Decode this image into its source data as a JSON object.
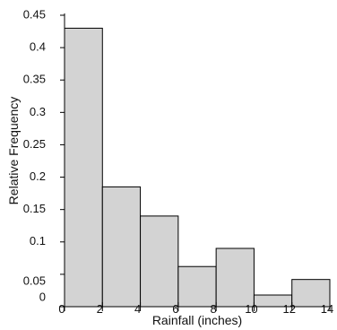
{
  "chart_data": {
    "type": "bar",
    "xlabel": "Rainfall (inches)",
    "ylabel": "Relative Frequency",
    "bins": [
      {
        "from": 0,
        "to": 2,
        "value": 0.43
      },
      {
        "from": 2,
        "to": 4,
        "value": 0.185
      },
      {
        "from": 4,
        "to": 6,
        "value": 0.14
      },
      {
        "from": 6,
        "to": 8,
        "value": 0.062
      },
      {
        "from": 8,
        "to": 10,
        "value": 0.09
      },
      {
        "from": 10,
        "to": 12,
        "value": 0.018
      },
      {
        "from": 12,
        "to": 14,
        "value": 0.042
      }
    ],
    "x_ticks": [
      "0",
      "2",
      "4",
      "6",
      "8",
      "10",
      "12",
      "14"
    ],
    "y_ticks": [
      "0",
      "0.05",
      "0.1",
      "0.15",
      "0.2",
      "0.25",
      "0.3",
      "0.35",
      "0.4",
      "0.45"
    ],
    "xlim": [
      0,
      14
    ],
    "ylim": [
      0,
      0.45
    ],
    "grid": false,
    "bar_color": "#d3d3d3",
    "edge_color": "#000000"
  }
}
